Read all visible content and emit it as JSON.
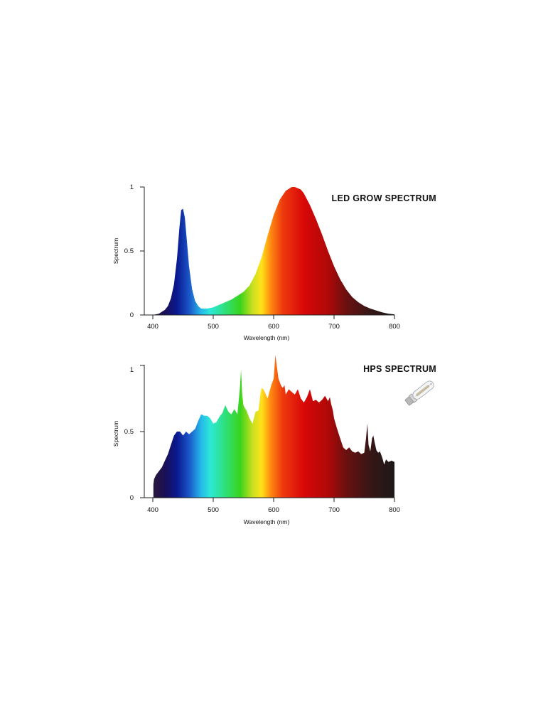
{
  "colors": {
    "background": "#ffffff",
    "axis": "#222222",
    "spectrum_stops": [
      {
        "nm": 400,
        "color": "#2a1838"
      },
      {
        "nm": 420,
        "color": "#1a1056"
      },
      {
        "nm": 440,
        "color": "#0a1890"
      },
      {
        "nm": 460,
        "color": "#1a56c8"
      },
      {
        "nm": 480,
        "color": "#25b8e8"
      },
      {
        "nm": 495,
        "color": "#2de8d8"
      },
      {
        "nm": 520,
        "color": "#2ee07a"
      },
      {
        "nm": 545,
        "color": "#3ad41c"
      },
      {
        "nm": 565,
        "color": "#c8e020"
      },
      {
        "nm": 580,
        "color": "#ffe21a"
      },
      {
        "nm": 595,
        "color": "#ff8a10"
      },
      {
        "nm": 615,
        "color": "#ee3a0e"
      },
      {
        "nm": 650,
        "color": "#d80808"
      },
      {
        "nm": 690,
        "color": "#b00808"
      },
      {
        "nm": 720,
        "color": "#6a1010"
      },
      {
        "nm": 760,
        "color": "#361616"
      },
      {
        "nm": 800,
        "color": "#1e1818"
      }
    ]
  },
  "icons": {
    "bulb": "hps-bulb-icon"
  },
  "chart_data": [
    {
      "type": "area",
      "title": "LED GROW SPECTRUM",
      "xlabel": "Wavelength (nm)",
      "ylabel": "Spectrum",
      "xlim": [
        400,
        800
      ],
      "ylim": [
        0,
        1
      ],
      "xticks": [
        400,
        500,
        600,
        700,
        800
      ],
      "yticks": [
        0,
        0.5,
        1
      ],
      "xtick_labels": [
        "400",
        "500",
        "600",
        "700",
        "800"
      ],
      "ytick_labels": [
        "0",
        "0.5",
        "1"
      ],
      "fill": "spectrum-gradient",
      "x": [
        400,
        410,
        420,
        425,
        430,
        435,
        440,
        444,
        447,
        450,
        453,
        456,
        460,
        465,
        470,
        475,
        480,
        485,
        490,
        495,
        500,
        510,
        520,
        530,
        540,
        550,
        560,
        570,
        580,
        590,
        600,
        610,
        620,
        630,
        635,
        640,
        645,
        650,
        660,
        670,
        680,
        690,
        700,
        710,
        720,
        730,
        740,
        750,
        760,
        770,
        780,
        790,
        800
      ],
      "y": [
        0.0,
        0.01,
        0.04,
        0.07,
        0.13,
        0.24,
        0.44,
        0.68,
        0.82,
        0.83,
        0.76,
        0.6,
        0.38,
        0.2,
        0.11,
        0.07,
        0.05,
        0.05,
        0.05,
        0.055,
        0.06,
        0.08,
        0.1,
        0.12,
        0.15,
        0.18,
        0.23,
        0.32,
        0.45,
        0.62,
        0.78,
        0.9,
        0.97,
        1.0,
        1.0,
        0.99,
        0.98,
        0.95,
        0.86,
        0.75,
        0.63,
        0.5,
        0.38,
        0.28,
        0.2,
        0.14,
        0.1,
        0.07,
        0.05,
        0.035,
        0.02,
        0.01,
        0.005
      ]
    },
    {
      "type": "area",
      "title": "HPS SPECTRUM",
      "xlabel": "Wavelength (nm)",
      "ylabel": "Spectrum",
      "xlim": [
        400,
        800
      ],
      "ylim": [
        0,
        1
      ],
      "xticks": [
        400,
        500,
        600,
        700,
        800
      ],
      "yticks": [
        0,
        0.5,
        1
      ],
      "xtick_labels": [
        "400",
        "500",
        "600",
        "700",
        "800"
      ],
      "ytick_labels": [
        "0",
        "0.5",
        "1"
      ],
      "fill": "spectrum-gradient",
      "x": [
        401,
        402,
        405,
        410,
        415,
        420,
        425,
        430,
        435,
        440,
        445,
        450,
        455,
        460,
        465,
        470,
        475,
        480,
        485,
        490,
        495,
        500,
        505,
        510,
        515,
        520,
        525,
        530,
        535,
        540,
        544,
        546,
        548,
        550,
        552,
        555,
        560,
        565,
        570,
        575,
        578,
        580,
        583,
        587,
        590,
        593,
        596,
        600,
        603,
        605,
        608,
        612,
        615,
        618,
        620,
        625,
        630,
        635,
        640,
        645,
        650,
        655,
        660,
        665,
        670,
        675,
        680,
        685,
        690,
        693,
        695,
        698,
        700,
        705,
        710,
        715,
        720,
        725,
        730,
        735,
        740,
        745,
        750,
        753,
        755,
        757,
        760,
        763,
        765,
        767,
        770,
        773,
        776,
        780,
        783,
        786,
        790,
        795,
        800
      ],
      "y": [
        0.1,
        0.14,
        0.17,
        0.2,
        0.23,
        0.28,
        0.33,
        0.4,
        0.47,
        0.5,
        0.5,
        0.47,
        0.5,
        0.48,
        0.5,
        0.52,
        0.58,
        0.63,
        0.62,
        0.62,
        0.6,
        0.56,
        0.57,
        0.61,
        0.64,
        0.7,
        0.65,
        0.63,
        0.67,
        0.63,
        0.82,
        0.97,
        0.78,
        0.7,
        0.68,
        0.66,
        0.6,
        0.56,
        0.65,
        0.66,
        0.78,
        0.83,
        0.82,
        0.78,
        0.75,
        0.8,
        0.85,
        0.9,
        1.08,
        1.0,
        0.9,
        0.85,
        0.83,
        0.85,
        0.78,
        0.82,
        0.8,
        0.78,
        0.82,
        0.75,
        0.72,
        0.76,
        0.82,
        0.73,
        0.74,
        0.72,
        0.74,
        0.77,
        0.73,
        0.76,
        0.71,
        0.66,
        0.6,
        0.52,
        0.45,
        0.38,
        0.36,
        0.38,
        0.35,
        0.34,
        0.35,
        0.33,
        0.34,
        0.45,
        0.56,
        0.4,
        0.35,
        0.45,
        0.47,
        0.42,
        0.36,
        0.34,
        0.35,
        0.3,
        0.25,
        0.29,
        0.27,
        0.28,
        0.27
      ]
    }
  ]
}
